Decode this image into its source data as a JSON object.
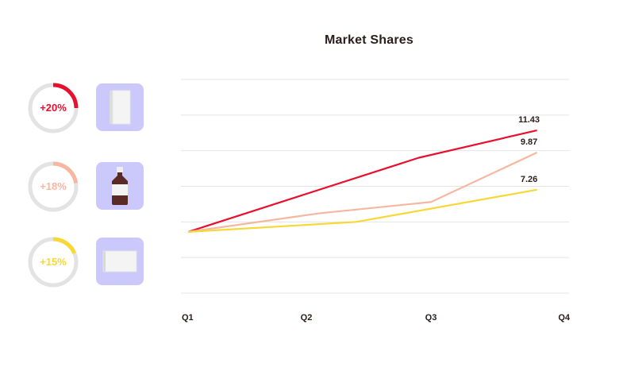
{
  "title": "Market Shares",
  "stats": [
    {
      "label": "+20%",
      "percent": 20,
      "color": "#e8102e",
      "product_icon": "book-icon"
    },
    {
      "label": "+18%",
      "percent": 18,
      "color": "#f6b7a0",
      "product_icon": "bottle-icon"
    },
    {
      "label": "+15%",
      "percent": 15,
      "color": "#f7d836",
      "product_icon": "box-icon"
    }
  ],
  "colors": {
    "tile_bg": "#cbc8fb",
    "ring_track": "#e3e3e3",
    "grid": "#e4e4e4"
  },
  "chart_data": {
    "type": "line",
    "title": "Market Shares",
    "categories": [
      "Q1",
      "Q2",
      "Q3",
      "Q4"
    ],
    "x": [
      1,
      2,
      3,
      4
    ],
    "series": [
      {
        "x": [
          1,
          2.85,
          3.8
        ],
        "values": [
          4.3,
          9.5,
          11.43
        ],
        "end_label": "11.43",
        "color": "#e8102e"
      },
      {
        "x": [
          1,
          2.05,
          2.95,
          3.8
        ],
        "values": [
          4.3,
          5.6,
          6.4,
          9.87
        ],
        "end_label": "9.87",
        "color": "#f6b7a0"
      },
      {
        "x": [
          1,
          2.35,
          3.8
        ],
        "values": [
          4.3,
          5.0,
          7.26
        ],
        "end_label": "7.26",
        "color": "#f7d836"
      }
    ],
    "ylim": [
      0,
      15
    ],
    "xlim": [
      1,
      4
    ],
    "grid": true,
    "legend": "none"
  }
}
